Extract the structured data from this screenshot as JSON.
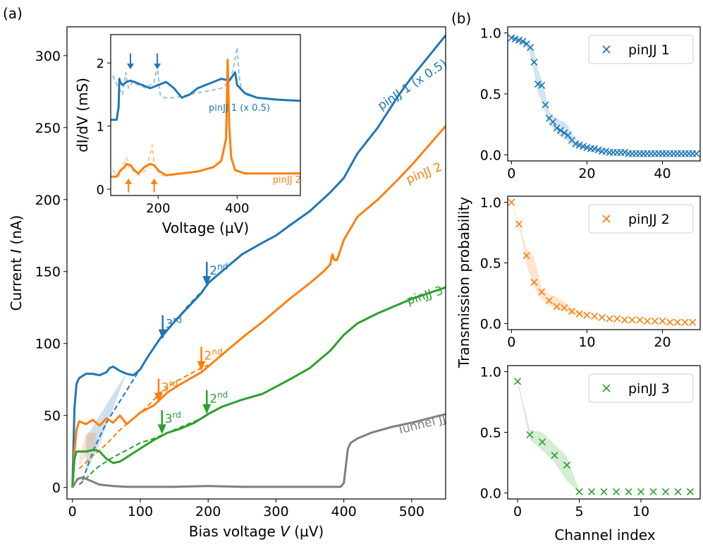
{
  "panel_labels": {
    "a": "(a)",
    "b": "(b)"
  },
  "colors": {
    "pin1": "#1f77b4",
    "pin2": "#ff7f0e",
    "pin3": "#2ca02c",
    "tunnel": "#7f7f7f"
  },
  "chart_data": [
    {
      "id": "main_iv",
      "type": "line",
      "xlabel": "Bias voltage V (µV)",
      "ylabel": "Current I (nA)",
      "xlim": [
        -8,
        550
      ],
      "ylim": [
        -8,
        320
      ],
      "xticks": [
        0,
        100,
        200,
        300,
        400,
        500
      ],
      "yticks": [
        0,
        50,
        100,
        150,
        200,
        250,
        300
      ],
      "series": [
        {
          "name": "pinJJ 1 (x 0.5)",
          "color_key": "pin1",
          "style": "solid",
          "x": [
            0,
            3,
            6,
            10,
            20,
            30,
            40,
            50,
            55,
            60,
            70,
            80,
            90,
            100,
            110,
            120,
            130,
            150,
            170,
            190,
            200,
            220,
            250,
            280,
            300,
            320,
            350,
            380,
            400,
            420,
            450,
            480,
            500,
            550
          ],
          "y": [
            0,
            55,
            72,
            76,
            79,
            79,
            78,
            80,
            83,
            84,
            81,
            79,
            78,
            82,
            90,
            97,
            104,
            115,
            125,
            135,
            142,
            150,
            162,
            170,
            175,
            182,
            192,
            205,
            215,
            232,
            250,
            272,
            285,
            314
          ]
        },
        {
          "name": "pinJJ 1 fit",
          "color_key": "pin1",
          "style": "dashed",
          "x": [
            15,
            30,
            50,
            70,
            90,
            110,
            130,
            150,
            170,
            200
          ],
          "y": [
            5,
            25,
            45,
            60,
            75,
            90,
            104,
            115,
            126,
            141
          ]
        },
        {
          "name": "pinJJ 2",
          "color_key": "pin2",
          "style": "solid",
          "x": [
            0,
            3,
            6,
            10,
            20,
            30,
            40,
            50,
            60,
            70,
            80,
            90,
            100,
            120,
            140,
            160,
            190,
            200,
            220,
            250,
            280,
            300,
            320,
            350,
            370,
            380,
            383,
            386,
            390,
            400,
            420,
            450,
            480,
            500,
            550
          ],
          "y": [
            0,
            25,
            40,
            46,
            44,
            47,
            43,
            48,
            45,
            50,
            44,
            48,
            52,
            57,
            66,
            72,
            80,
            84,
            92,
            104,
            115,
            123,
            131,
            142,
            150,
            155,
            162,
            158,
            158,
            172,
            188,
            200,
            214,
            224,
            251
          ]
        },
        {
          "name": "pinJJ 2 fit",
          "color_key": "pin2",
          "style": "dashed",
          "x": [
            10,
            30,
            50,
            70,
            90,
            110,
            130,
            150,
            170,
            190,
            200
          ],
          "y": [
            13,
            22,
            30,
            40,
            48,
            56,
            66,
            73,
            78,
            83,
            85
          ]
        },
        {
          "name": "pinJJ 3",
          "color_key": "pin3",
          "style": "solid",
          "x": [
            0,
            3,
            6,
            10,
            20,
            30,
            35,
            40,
            50,
            60,
            70,
            80,
            90,
            100,
            120,
            140,
            160,
            180,
            200,
            220,
            250,
            280,
            300,
            320,
            350,
            380,
            400,
            420,
            450,
            480,
            500,
            550
          ],
          "y": [
            0,
            20,
            25,
            25,
            25,
            26,
            26,
            25,
            20,
            17,
            18,
            21,
            24,
            27,
            33,
            38,
            41,
            45,
            51,
            56,
            61,
            65,
            70,
            75,
            83,
            95,
            106,
            114,
            121,
            127,
            131,
            139
          ]
        },
        {
          "name": "pinJJ 3 fit",
          "color_key": "pin3",
          "style": "dashed",
          "x": [
            10,
            20,
            30,
            40,
            60,
            80,
            100,
            120,
            140,
            160,
            180,
            200
          ],
          "y": [
            2,
            6,
            11,
            15,
            21,
            26,
            31,
            34,
            38,
            42,
            46,
            50
          ]
        },
        {
          "name": "Tunnel JJ",
          "color_key": "tunnel",
          "style": "solid",
          "x": [
            0,
            5,
            8,
            15,
            25,
            40,
            60,
            80,
            100,
            150,
            200,
            250,
            300,
            350,
            395,
            400,
            403,
            406,
            410,
            420,
            440,
            470,
            500,
            550
          ],
          "y": [
            0,
            4,
            6,
            7,
            5,
            2,
            1,
            0.5,
            0.5,
            0.5,
            1,
            0.5,
            0.5,
            0.5,
            0.5,
            3,
            15,
            27,
            31,
            34,
            38,
            42,
            45,
            51
          ]
        }
      ],
      "annotations": [
        {
          "series": "pin1",
          "order": "2",
          "sup": "nd",
          "x": 198,
          "y": 140
        },
        {
          "series": "pin1",
          "order": "3",
          "sup": "rd",
          "x": 133,
          "y": 103
        },
        {
          "series": "pin2",
          "order": "2",
          "sup": "nd",
          "x": 190,
          "y": 81
        },
        {
          "series": "pin2",
          "order": "3",
          "sup": "rd",
          "x": 127,
          "y": 59
        },
        {
          "series": "pin3",
          "order": "2",
          "sup": "nd",
          "x": 198,
          "y": 51
        },
        {
          "series": "pin3",
          "order": "3",
          "sup": "rd",
          "x": 132,
          "y": 37
        }
      ],
      "curve_labels": {
        "pin1": "pinJJ 1 (x 0.5)",
        "pin2": "pinJJ 2",
        "pin3": "pinJJ 3",
        "tunnel": "Tunnel JJ"
      }
    },
    {
      "id": "inset_didv",
      "type": "line",
      "xlabel": "Voltage (µV)",
      "ylabel": "dI/dV (mS)",
      "xlim": [
        80,
        560
      ],
      "ylim": [
        -0.1,
        2.45
      ],
      "xticks": [
        200,
        400
      ],
      "yticks": [
        0,
        1,
        2
      ],
      "inset_labels": {
        "pin1": "pinJJ 1 (x 0.5)",
        "pin2": "pinJJ 2"
      },
      "series": [
        {
          "name": "pinJJ 1 (x 0.5)",
          "color_key": "pin1",
          "style": "solid",
          "x": [
            80,
            95,
            100,
            102,
            104,
            110,
            120,
            130,
            140,
            160,
            180,
            200,
            220,
            240,
            260,
            280,
            300,
            320,
            340,
            360,
            380,
            395,
            400,
            420,
            450,
            500,
            560
          ],
          "y": [
            1.1,
            1.1,
            1.3,
            1.75,
            1.7,
            1.65,
            1.7,
            1.72,
            1.7,
            1.65,
            1.6,
            1.65,
            1.7,
            1.6,
            1.45,
            1.5,
            1.6,
            1.65,
            1.7,
            1.75,
            1.72,
            1.85,
            1.65,
            1.52,
            1.45,
            1.42,
            1.4
          ]
        },
        {
          "name": "pinJJ 1 (x 0.5) model",
          "color_key": "pin1",
          "style": "dashed",
          "x": [
            85,
            100,
            110,
            118,
            125,
            135,
            150,
            170,
            190,
            198,
            205,
            215,
            240,
            280,
            320,
            360,
            380,
            390,
            400,
            405,
            410,
            420,
            450,
            500,
            560
          ],
          "y": [
            1.8,
            1.6,
            1.5,
            1.85,
            1.6,
            1.7,
            1.65,
            1.6,
            1.7,
            1.95,
            1.5,
            1.45,
            1.45,
            1.5,
            1.55,
            1.6,
            1.7,
            1.9,
            2.25,
            1.8,
            1.6,
            1.5,
            1.45,
            1.42,
            1.4
          ]
        },
        {
          "name": "pinJJ 2",
          "color_key": "pin2",
          "style": "solid",
          "x": [
            80,
            95,
            105,
            115,
            120,
            130,
            140,
            150,
            165,
            180,
            190,
            200,
            220,
            260,
            300,
            340,
            360,
            372,
            376,
            380,
            385,
            395,
            420,
            480,
            560
          ],
          "y": [
            0.2,
            0.2,
            0.3,
            0.35,
            0.4,
            0.38,
            0.3,
            0.25,
            0.35,
            0.4,
            0.38,
            0.3,
            0.22,
            0.25,
            0.28,
            0.35,
            0.45,
            0.8,
            2.05,
            1.0,
            0.5,
            0.3,
            0.25,
            0.25,
            0.25
          ]
        },
        {
          "name": "pinJJ 2 model",
          "color_key": "pin2",
          "style": "dashed",
          "x": [
            85,
            100,
            110,
            120,
            126,
            135,
            150,
            170,
            185,
            190,
            195,
            210,
            260,
            300,
            340,
            360,
            372,
            376,
            380,
            385,
            395,
            420,
            480,
            560
          ],
          "y": [
            0.3,
            0.2,
            0.35,
            0.5,
            0.35,
            0.3,
            0.22,
            0.3,
            0.7,
            0.4,
            0.3,
            0.22,
            0.25,
            0.28,
            0.35,
            0.45,
            0.8,
            2.05,
            1.0,
            0.5,
            0.3,
            0.25,
            0.25,
            0.25
          ]
        }
      ],
      "arrows": [
        {
          "color_key": "pin1",
          "x": 130,
          "dir": "down",
          "y_from": 2.15,
          "y_to": 1.9
        },
        {
          "color_key": "pin1",
          "x": 198,
          "dir": "down",
          "y_from": 2.15,
          "y_to": 1.9
        },
        {
          "color_key": "pin2",
          "x": 125,
          "dir": "up",
          "y_from": -0.05,
          "y_to": 0.17
        },
        {
          "color_key": "pin2",
          "x": 190,
          "dir": "up",
          "y_from": -0.05,
          "y_to": 0.17
        }
      ]
    },
    {
      "id": "trans_pin1",
      "type": "scatter",
      "legend": "pinJJ 1",
      "color_key": "pin1",
      "xlim": [
        -1,
        50
      ],
      "ylim": [
        -0.05,
        1.05
      ],
      "xticks": [
        0,
        20,
        40
      ],
      "yticks": [
        0.0,
        0.5,
        1.0
      ],
      "x": [
        0,
        1,
        2,
        3,
        4,
        5,
        6,
        7,
        8,
        9,
        10,
        11,
        12,
        13,
        14,
        15,
        16,
        17,
        18,
        19,
        20,
        21,
        22,
        23,
        24,
        25,
        26,
        27,
        28,
        29,
        30,
        31,
        32,
        33,
        34,
        35,
        36,
        37,
        38,
        39,
        40,
        41,
        42,
        43,
        44,
        45,
        46,
        47,
        48,
        49
      ],
      "y": [
        0.96,
        0.95,
        0.94,
        0.93,
        0.91,
        0.88,
        0.76,
        0.58,
        0.57,
        0.41,
        0.3,
        0.27,
        0.22,
        0.2,
        0.18,
        0.16,
        0.12,
        0.09,
        0.08,
        0.07,
        0.06,
        0.05,
        0.05,
        0.04,
        0.03,
        0.03,
        0.02,
        0.02,
        0.02,
        0.02,
        0.02,
        0.01,
        0.01,
        0.01,
        0.01,
        0.01,
        0.01,
        0.01,
        0.01,
        0.01,
        0.01,
        0.01,
        0.01,
        0.01,
        0.01,
        0.01,
        0.01,
        0.01,
        0.01,
        0.01
      ],
      "band_upper": [
        0.97,
        0.97,
        0.96,
        0.95,
        0.94,
        0.92,
        0.85,
        0.7,
        0.62,
        0.5,
        0.36,
        0.32,
        0.3,
        0.28,
        0.27,
        0.24,
        0.18,
        0.13,
        0.1,
        0.08,
        0.07,
        0.06,
        0.05,
        0.04,
        0.03
      ],
      "band_lower": [
        0.95,
        0.93,
        0.92,
        0.9,
        0.88,
        0.82,
        0.68,
        0.5,
        0.45,
        0.34,
        0.25,
        0.22,
        0.18,
        0.15,
        0.13,
        0.11,
        0.08,
        0.06,
        0.05,
        0.05,
        0.04,
        0.04,
        0.03,
        0.03,
        0.02
      ]
    },
    {
      "id": "trans_pin2",
      "type": "scatter",
      "legend": "pinJJ 2",
      "color_key": "pin2",
      "xlim": [
        -0.5,
        25
      ],
      "ylim": [
        -0.05,
        1.05
      ],
      "xticks": [
        0,
        10,
        20
      ],
      "yticks": [
        0.0,
        0.5,
        1.0
      ],
      "x": [
        0,
        1,
        2,
        3,
        4,
        5,
        6,
        7,
        8,
        9,
        10,
        11,
        12,
        13,
        14,
        15,
        16,
        17,
        18,
        19,
        20,
        21,
        22,
        23,
        24
      ],
      "y": [
        1.0,
        0.82,
        0.56,
        0.34,
        0.26,
        0.19,
        0.14,
        0.13,
        0.1,
        0.08,
        0.07,
        0.06,
        0.05,
        0.04,
        0.04,
        0.03,
        0.03,
        0.03,
        0.02,
        0.02,
        0.02,
        0.01,
        0.01,
        0.01,
        0.01
      ],
      "band_upper": [
        1.0,
        0.84,
        0.62,
        0.55,
        0.3,
        0.24,
        0.22,
        0.18,
        0.13,
        0.1,
        0.08
      ],
      "band_lower": [
        1.0,
        0.8,
        0.48,
        0.3,
        0.2,
        0.15,
        0.12,
        0.1,
        0.08,
        0.07,
        0.06
      ]
    },
    {
      "id": "trans_pin3",
      "type": "scatter",
      "legend": "pinJJ 3",
      "color_key": "pin3",
      "xlim": [
        -0.8,
        14.8
      ],
      "ylim": [
        -0.05,
        1.05
      ],
      "xticks": [
        0,
        5,
        10
      ],
      "yticks": [
        0.0,
        0.5,
        1.0
      ],
      "x": [
        0,
        1,
        2,
        3,
        4,
        5,
        6,
        7,
        8,
        9,
        10,
        11,
        12,
        13,
        14
      ],
      "y": [
        0.92,
        0.48,
        0.42,
        0.31,
        0.23,
        0.01,
        0.01,
        0.01,
        0.01,
        0.01,
        0.01,
        0.01,
        0.01,
        0.01,
        0.01
      ],
      "band_upper": [
        0.93,
        0.52,
        0.5,
        0.4,
        0.3,
        0.02
      ],
      "band_lower": [
        0.9,
        0.44,
        0.35,
        0.25,
        0.1,
        0.0
      ]
    }
  ],
  "shared_labels": {
    "transmission_ylabel": "Transmission probability",
    "channel_xlabel": "Channel index"
  }
}
